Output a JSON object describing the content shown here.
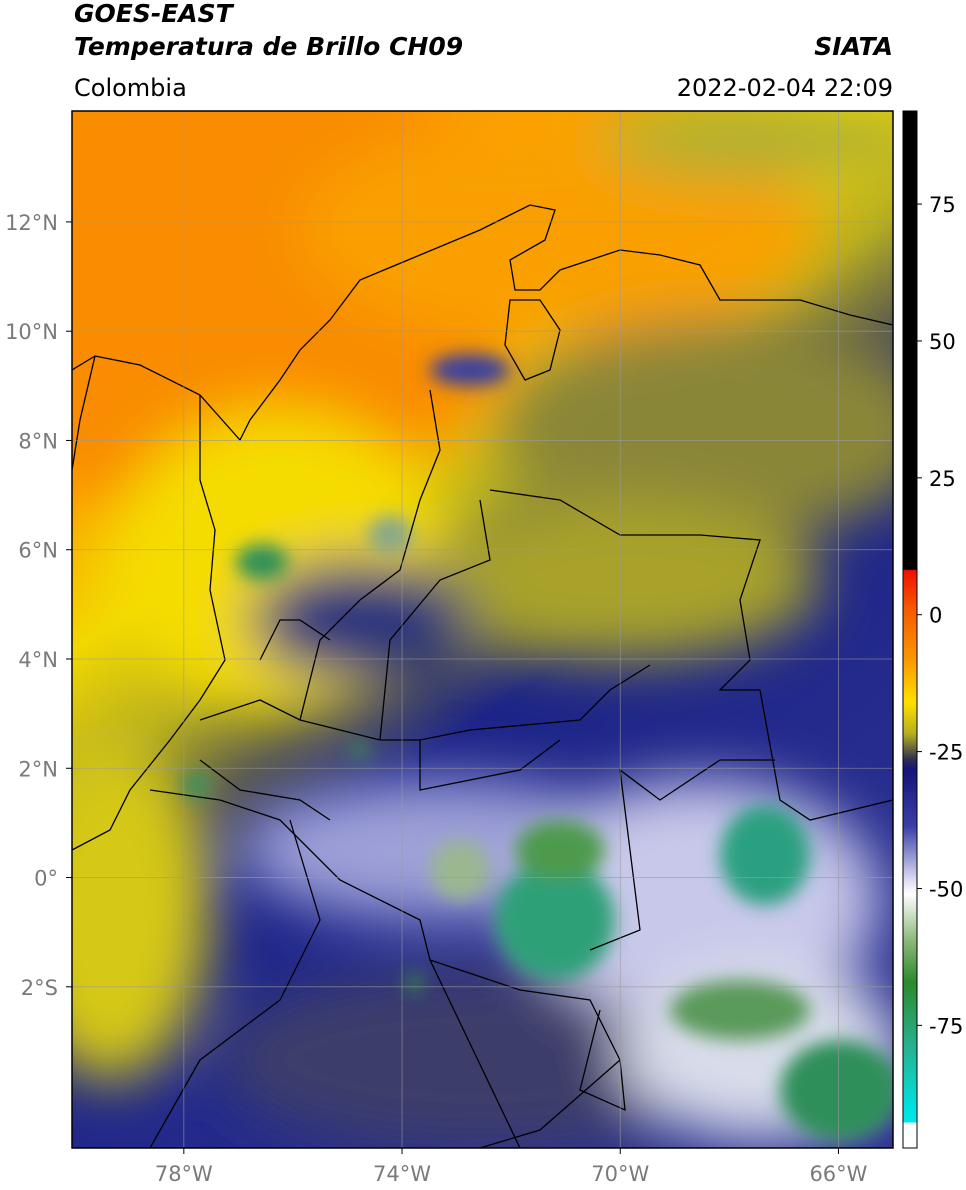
{
  "header": {
    "satellite": "GOES-EAST",
    "product": "Temperatura de Brillo CH09",
    "source": "SIATA",
    "region": "Colombia",
    "datetime": "2022-02-04 22:09"
  },
  "map": {
    "xlim": [
      -80.05,
      -65.0
    ],
    "ylim": [
      -4.95,
      14.03
    ],
    "grid": true,
    "xticks": [
      {
        "value": -78,
        "label": "78°W"
      },
      {
        "value": -74,
        "label": "74°W"
      },
      {
        "value": -70,
        "label": "70°W"
      },
      {
        "value": -66,
        "label": "66°W"
      }
    ],
    "yticks": [
      {
        "value": 12,
        "label": "12°N"
      },
      {
        "value": 10,
        "label": "10°N"
      },
      {
        "value": 8,
        "label": "8°N"
      },
      {
        "value": 6,
        "label": "6°N"
      },
      {
        "value": 4,
        "label": "4°N"
      },
      {
        "value": 2,
        "label": "2°N"
      },
      {
        "value": 0,
        "label": "0°"
      },
      {
        "value": -2,
        "label": "2°S"
      }
    ]
  },
  "colorbar": {
    "lim": [
      -97.4,
      92
    ],
    "ticks": [
      75,
      50,
      25,
      0,
      -25,
      -50,
      -75
    ]
  }
}
